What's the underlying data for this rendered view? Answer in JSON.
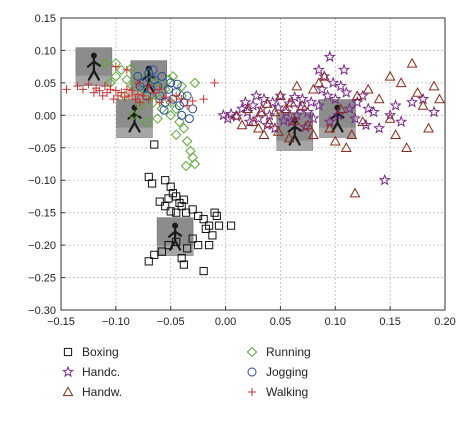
{
  "chart_data": {
    "type": "scatter",
    "title": "",
    "xlabel": "",
    "ylabel": "",
    "xlim": [
      -0.15,
      0.2
    ],
    "ylim": [
      -0.3,
      0.15
    ],
    "x_ticks": [
      -0.15,
      -0.1,
      -0.05,
      0.0,
      0.05,
      0.1,
      0.15,
      0.2
    ],
    "x_tick_labels": [
      "−0.15",
      "−0.10",
      "−0.05",
      "0.00",
      "0.05",
      "0.10",
      "0.15",
      "0.20"
    ],
    "y_ticks": [
      0.15,
      0.1,
      0.05,
      0.0,
      -0.05,
      -0.1,
      -0.15,
      -0.2,
      -0.25,
      -0.3
    ],
    "y_tick_labels": [
      "0.15",
      "0.10",
      "0.05",
      "0.00",
      "−0.05",
      "−0.10",
      "−0.15",
      "−0.20",
      "−0.25",
      "−0.30"
    ],
    "grid": true,
    "legend_position": "bottom",
    "series": [
      {
        "name": "Boxing",
        "marker": "square",
        "color": "#111111",
        "points": [
          [
            -0.065,
            -0.045
          ],
          [
            -0.07,
            -0.095
          ],
          [
            -0.067,
            -0.105
          ],
          [
            -0.055,
            -0.1
          ],
          [
            -0.05,
            -0.11
          ],
          [
            -0.048,
            -0.12
          ],
          [
            -0.045,
            -0.125
          ],
          [
            -0.052,
            -0.128
          ],
          [
            -0.06,
            -0.133
          ],
          [
            -0.042,
            -0.135
          ],
          [
            -0.038,
            -0.13
          ],
          [
            -0.04,
            -0.14
          ],
          [
            -0.055,
            -0.14
          ],
          [
            -0.05,
            -0.148
          ],
          [
            -0.045,
            -0.15
          ],
          [
            -0.036,
            -0.15
          ],
          [
            -0.03,
            -0.145
          ],
          [
            -0.025,
            -0.155
          ],
          [
            -0.02,
            -0.16
          ],
          [
            -0.015,
            -0.17
          ],
          [
            -0.01,
            -0.15
          ],
          [
            -0.006,
            -0.17
          ],
          [
            -0.012,
            -0.185
          ],
          [
            -0.018,
            -0.175
          ],
          [
            -0.025,
            -0.2
          ],
          [
            -0.03,
            -0.19
          ],
          [
            -0.035,
            -0.205
          ],
          [
            -0.045,
            -0.195
          ],
          [
            -0.052,
            -0.2
          ],
          [
            -0.058,
            -0.21
          ],
          [
            -0.065,
            -0.215
          ],
          [
            -0.04,
            -0.22
          ],
          [
            -0.07,
            -0.225
          ],
          [
            -0.02,
            -0.24
          ],
          [
            -0.038,
            -0.23
          ],
          [
            -0.008,
            -0.155
          ],
          [
            0.005,
            -0.17
          ],
          [
            -0.015,
            -0.2
          ]
        ]
      },
      {
        "name": "Handc.",
        "marker": "star",
        "color": "#7a2a8a",
        "points": [
          [
            -0.002,
            0.0
          ],
          [
            0.002,
            -0.005
          ],
          [
            0.005,
            0.002
          ],
          [
            0.01,
            -0.002
          ],
          [
            0.015,
            0.01
          ],
          [
            0.018,
            0.02
          ],
          [
            0.02,
            0.005
          ],
          [
            0.022,
            -0.01
          ],
          [
            0.025,
            0.015
          ],
          [
            0.028,
            0.03
          ],
          [
            0.03,
            -0.005
          ],
          [
            0.033,
            0.01
          ],
          [
            0.035,
            0.025
          ],
          [
            0.038,
            -0.015
          ],
          [
            0.04,
            0.0
          ],
          [
            0.043,
            0.02
          ],
          [
            0.045,
            -0.02
          ],
          [
            0.048,
            0.012
          ],
          [
            0.05,
            0.03
          ],
          [
            0.053,
            -0.008
          ],
          [
            0.055,
            0.005
          ],
          [
            0.058,
            0.018
          ],
          [
            0.06,
            -0.01
          ],
          [
            0.063,
            0.028
          ],
          [
            0.065,
            0.0
          ],
          [
            0.068,
            0.012
          ],
          [
            0.07,
            0.025
          ],
          [
            0.073,
            -0.018
          ],
          [
            0.075,
            0.005
          ],
          [
            0.078,
            0.02
          ],
          [
            0.08,
            -0.005
          ],
          [
            0.085,
            0.015
          ],
          [
            0.088,
            0.04
          ],
          [
            0.09,
            0.06
          ],
          [
            0.093,
            0.03
          ],
          [
            0.095,
            -0.01
          ],
          [
            0.098,
            0.05
          ],
          [
            0.1,
            0.025
          ],
          [
            0.103,
            0.0
          ],
          [
            0.105,
            0.045
          ],
          [
            0.108,
            0.07
          ],
          [
            0.11,
            0.035
          ],
          [
            0.113,
            0.01
          ],
          [
            0.118,
            -0.005
          ],
          [
            0.12,
            0.02
          ],
          [
            0.125,
            0.03
          ],
          [
            0.128,
            -0.015
          ],
          [
            0.13,
            0.01
          ],
          [
            0.135,
            0.005
          ],
          [
            0.14,
            -0.02
          ],
          [
            0.145,
            -0.1
          ],
          [
            0.15,
            0.0
          ],
          [
            0.155,
            0.015
          ],
          [
            0.16,
            -0.01
          ],
          [
            0.17,
            0.02
          ],
          [
            0.18,
            0.025
          ],
          [
            0.19,
            0.005
          ],
          [
            0.095,
            0.09
          ],
          [
            0.085,
            0.07
          ]
        ]
      },
      {
        "name": "Handw.",
        "marker": "triangle",
        "color": "#8b2a1a",
        "points": [
          [
            0.01,
            0.0
          ],
          [
            0.015,
            -0.015
          ],
          [
            0.02,
            0.01
          ],
          [
            0.025,
            -0.01
          ],
          [
            0.03,
            -0.02
          ],
          [
            0.032,
            0.005
          ],
          [
            0.035,
            -0.03
          ],
          [
            0.038,
            0.018
          ],
          [
            0.04,
            -0.012
          ],
          [
            0.045,
            0.005
          ],
          [
            0.048,
            -0.025
          ],
          [
            0.05,
            0.03
          ],
          [
            0.055,
            0.01
          ],
          [
            0.058,
            -0.035
          ],
          [
            0.06,
            0.02
          ],
          [
            0.063,
            -0.008
          ],
          [
            0.065,
            0.045
          ],
          [
            0.07,
            0.015
          ],
          [
            0.075,
            -0.015
          ],
          [
            0.08,
            0.04
          ],
          [
            0.085,
            0.05
          ],
          [
            0.09,
            0.06
          ],
          [
            0.095,
            -0.02
          ],
          [
            0.1,
            -0.04
          ],
          [
            0.105,
            0.01
          ],
          [
            0.11,
            -0.05
          ],
          [
            0.115,
            -0.03
          ],
          [
            0.118,
            -0.12
          ],
          [
            0.12,
            0.03
          ],
          [
            0.125,
            -0.01
          ],
          [
            0.13,
            0.04
          ],
          [
            0.14,
            0.025
          ],
          [
            0.15,
            0.06
          ],
          [
            0.155,
            -0.03
          ],
          [
            0.16,
            0.05
          ],
          [
            0.165,
            -0.05
          ],
          [
            0.17,
            0.08
          ],
          [
            0.175,
            0.035
          ],
          [
            0.18,
            0.015
          ],
          [
            0.185,
            -0.02
          ],
          [
            0.19,
            0.045
          ],
          [
            0.195,
            0.025
          ],
          [
            0.15,
            -0.005
          ],
          [
            0.08,
            -0.03
          ]
        ]
      },
      {
        "name": "Running",
        "marker": "diamond",
        "color": "#5aa832",
        "points": [
          [
            -0.11,
            0.08
          ],
          [
            -0.1,
            0.06
          ],
          [
            -0.095,
            0.07
          ],
          [
            -0.09,
            0.055
          ],
          [
            -0.085,
            0.045
          ],
          [
            -0.08,
            0.06
          ],
          [
            -0.075,
            0.04
          ],
          [
            -0.07,
            0.03
          ],
          [
            -0.065,
            0.05
          ],
          [
            -0.06,
            0.025
          ],
          [
            -0.055,
            0.04
          ],
          [
            -0.05,
            0.02
          ],
          [
            -0.048,
            0.06
          ],
          [
            -0.045,
            0.01
          ],
          [
            -0.042,
            -0.01
          ],
          [
            -0.04,
            0.03
          ],
          [
            -0.038,
            -0.02
          ],
          [
            -0.035,
            -0.04
          ],
          [
            -0.032,
            -0.055
          ],
          [
            -0.03,
            -0.065
          ],
          [
            -0.028,
            -0.075
          ],
          [
            -0.045,
            -0.03
          ],
          [
            -0.05,
            0.0
          ],
          [
            -0.058,
            0.01
          ],
          [
            -0.062,
            -0.005
          ],
          [
            -0.066,
            0.02
          ],
          [
            -0.072,
            -0.01
          ],
          [
            -0.078,
            0.015
          ],
          [
            -0.084,
            0.0
          ],
          [
            -0.092,
            0.03
          ],
          [
            -0.04,
            0.045
          ],
          [
            -0.052,
            0.055
          ],
          [
            -0.086,
            0.072
          ],
          [
            -0.07,
            0.065
          ],
          [
            -0.036,
            -0.078
          ],
          [
            -0.028,
            0.05
          ],
          [
            -0.1,
            0.08
          ],
          [
            -0.105,
            0.05
          ]
        ]
      },
      {
        "name": "Jogging",
        "marker": "circle",
        "color": "#2a4a9a",
        "points": [
          [
            -0.08,
            0.06
          ],
          [
            -0.075,
            0.05
          ],
          [
            -0.07,
            0.065
          ],
          [
            -0.068,
            0.04
          ],
          [
            -0.065,
            0.055
          ],
          [
            -0.062,
            0.045
          ],
          [
            -0.06,
            0.03
          ],
          [
            -0.058,
            0.06
          ],
          [
            -0.055,
            0.02
          ],
          [
            -0.052,
            0.04
          ],
          [
            -0.05,
            0.05
          ],
          [
            -0.048,
            0.025
          ],
          [
            -0.045,
            0.035
          ],
          [
            -0.042,
            0.015
          ],
          [
            -0.04,
            0.0
          ],
          [
            -0.038,
            0.02
          ],
          [
            -0.035,
            0.03
          ],
          [
            -0.033,
            -0.005
          ],
          [
            -0.03,
            0.01
          ],
          [
            -0.072,
            0.03
          ],
          [
            -0.078,
            0.045
          ],
          [
            -0.066,
            0.07
          ],
          [
            -0.044,
            0.048
          ],
          [
            -0.056,
            0.008
          ]
        ]
      },
      {
        "name": "Walking",
        "marker": "plus",
        "color": "#cc3333",
        "points": [
          [
            -0.145,
            0.04
          ],
          [
            -0.135,
            0.045
          ],
          [
            -0.13,
            0.04
          ],
          [
            -0.125,
            0.048
          ],
          [
            -0.12,
            0.035
          ],
          [
            -0.118,
            0.042
          ],
          [
            -0.115,
            0.038
          ],
          [
            -0.112,
            0.03
          ],
          [
            -0.11,
            0.045
          ],
          [
            -0.108,
            0.035
          ],
          [
            -0.105,
            0.04
          ],
          [
            -0.102,
            0.025
          ],
          [
            -0.1,
            0.038
          ],
          [
            -0.098,
            0.03
          ],
          [
            -0.095,
            0.035
          ],
          [
            -0.092,
            0.028
          ],
          [
            -0.09,
            0.04
          ],
          [
            -0.088,
            0.03
          ],
          [
            -0.085,
            0.038
          ],
          [
            -0.082,
            0.025
          ],
          [
            -0.08,
            0.032
          ],
          [
            -0.078,
            0.02
          ],
          [
            -0.075,
            0.03
          ],
          [
            -0.07,
            0.025
          ],
          [
            -0.065,
            0.035
          ],
          [
            -0.06,
            0.02
          ],
          [
            -0.055,
            0.028
          ],
          [
            -0.05,
            0.022
          ],
          [
            -0.045,
            0.03
          ],
          [
            -0.04,
            0.025
          ],
          [
            -0.035,
            0.015
          ],
          [
            -0.03,
            0.022
          ],
          [
            -0.02,
            0.025
          ],
          [
            -0.01,
            0.05
          ],
          [
            -0.1,
            0.075
          ],
          [
            -0.09,
            0.07
          ],
          [
            -0.08,
            0.05
          ],
          [
            -0.07,
            0.045
          ],
          [
            -0.06,
            0.04
          ]
        ]
      }
    ],
    "inset_images": [
      {
        "name": "walking-thumbnail",
        "icon": "person-walking-icon",
        "x": -0.12,
        "y": 0.075
      },
      {
        "name": "jogging-thumbnail",
        "icon": "person-jogging-icon",
        "x": -0.07,
        "y": 0.055
      },
      {
        "name": "running-thumbnail",
        "icon": "person-running-icon",
        "x": -0.083,
        "y": -0.005
      },
      {
        "name": "boxing-thumbnail",
        "icon": "person-boxing-icon",
        "x": -0.046,
        "y": -0.187
      },
      {
        "name": "handwaving-thumbnail",
        "icon": "person-handwaving-icon",
        "x": 0.063,
        "y": -0.025
      },
      {
        "name": "handclapping-thumbnail",
        "icon": "person-handclapping-icon",
        "x": 0.102,
        "y": -0.005
      }
    ]
  }
}
